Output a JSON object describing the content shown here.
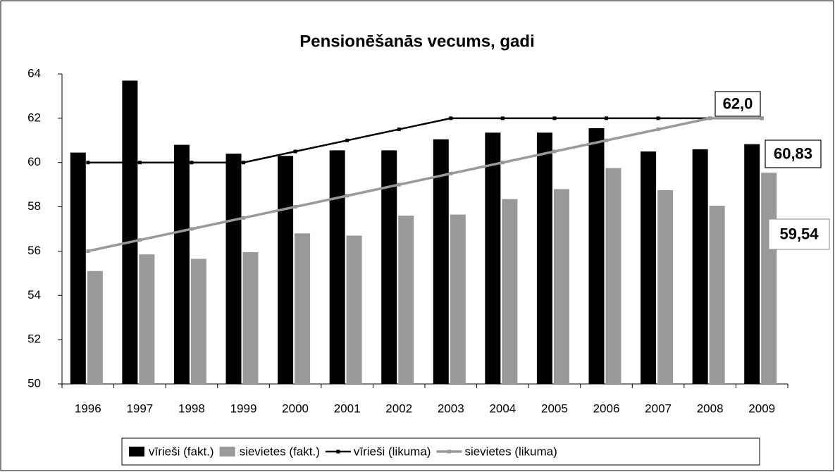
{
  "chart_data": {
    "type": "bar",
    "title": "Pensionēšanās vecums, gadi",
    "categories": [
      "1996",
      "1997",
      "1998",
      "1999",
      "2000",
      "2001",
      "2002",
      "2003",
      "2004",
      "2005",
      "2006",
      "2007",
      "2008",
      "2009"
    ],
    "series": [
      {
        "name": "vīrieši (fakt.)",
        "color": "#000000",
        "mark": "bar",
        "values": [
          60.45,
          63.7,
          60.8,
          60.4,
          60.3,
          60.55,
          60.55,
          61.05,
          61.35,
          61.35,
          61.55,
          60.5,
          60.6,
          60.83
        ]
      },
      {
        "name": "sievietes (fakt.)",
        "color": "#999999",
        "mark": "bar",
        "values": [
          55.1,
          55.85,
          55.65,
          55.95,
          56.8,
          56.7,
          57.6,
          57.65,
          58.35,
          58.8,
          59.75,
          58.75,
          58.05,
          59.54
        ]
      },
      {
        "name": "vīrieši (likuma)",
        "color": "#000000",
        "mark": "line",
        "values": [
          60,
          60,
          60,
          60,
          60.5,
          61,
          61.5,
          62,
          62,
          62,
          62,
          62,
          62,
          62
        ]
      },
      {
        "name": "sievietes (likuma)",
        "color": "#999999",
        "mark": "line",
        "values": [
          56,
          56.5,
          57,
          57.5,
          58,
          58.5,
          59,
          59.5,
          60,
          60.5,
          61,
          61.5,
          62,
          62
        ]
      }
    ],
    "ylim": [
      50,
      64
    ],
    "yticks": [
      50,
      52,
      54,
      56,
      58,
      60,
      62,
      64
    ],
    "legend": "bottom",
    "annotations": [
      {
        "text": "62,0"
      },
      {
        "text": "60,83"
      },
      {
        "text": "59,54"
      }
    ]
  }
}
